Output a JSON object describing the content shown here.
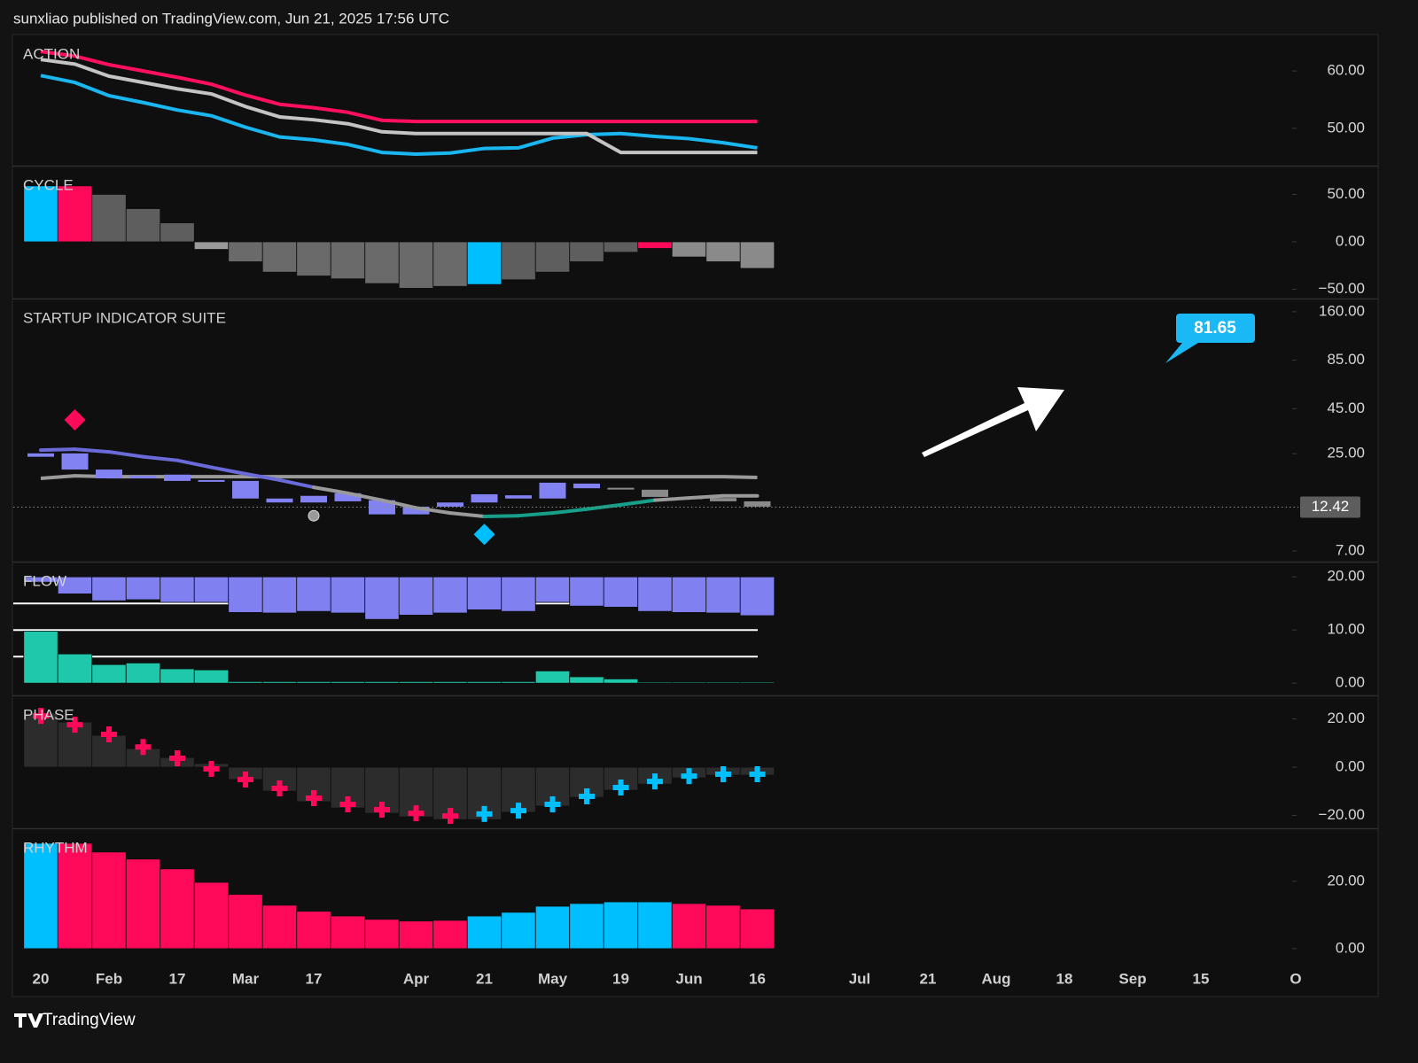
{
  "header": {
    "text": "sunxliao published on TradingView.com, Jun 21, 2025 17:56 UTC"
  },
  "footer": {
    "brand": "TradingView"
  },
  "chart_data": [
    {
      "type": "line",
      "title": "ACTION",
      "ylim": [
        43.5,
        66.2
      ],
      "yticks": [
        {
          "value": 50,
          "label": "50.00"
        },
        {
          "value": 60,
          "label": "60.00"
        }
      ],
      "series": [
        {
          "type": "line",
          "color": "#ff0f5f",
          "values": [
            63.4,
            62.6,
            61.1,
            60.0,
            58.9,
            57.7,
            55.8,
            54.2,
            53.6,
            52.8,
            51.4,
            51.2,
            51.2,
            51.2,
            51.2,
            51.2,
            51.2,
            51.2,
            51.2,
            51.2,
            51.2,
            51.2,
            null,
            null,
            null,
            null,
            null,
            null,
            null,
            null,
            null,
            null,
            null,
            null,
            null,
            null,
            null,
            null
          ]
        },
        {
          "type": "line",
          "color": "#1ab6f0",
          "values": [
            59.2,
            58.0,
            55.7,
            54.5,
            53.2,
            52.2,
            50.2,
            48.5,
            48.0,
            47.2,
            45.8,
            45.5,
            45.7,
            46.5,
            46.6,
            48.3,
            48.9,
            49.1,
            48.6,
            48.2,
            47.5,
            46.6,
            null,
            null,
            null,
            null,
            null,
            null,
            null,
            null,
            null,
            null,
            null,
            null,
            null,
            null,
            null,
            null
          ]
        },
        {
          "type": "line",
          "color": "#c4c4c4",
          "values": [
            62.0,
            61.2,
            59.1,
            58.0,
            56.9,
            56.0,
            53.8,
            52.0,
            51.5,
            50.8,
            49.4,
            49.1,
            49.1,
            49.1,
            49.1,
            49.1,
            49.1,
            45.8,
            45.8,
            45.8,
            45.8,
            45.8,
            null,
            null,
            null,
            null,
            null,
            null,
            null,
            null,
            null,
            null,
            null,
            null,
            null,
            null,
            null,
            null
          ]
        }
      ]
    },
    {
      "type": "bar",
      "title": "CYCLE",
      "ylim": [
        -59.8,
        79.4
      ],
      "yticks": [
        {
          "value": -50,
          "label": "−50.00"
        },
        {
          "value": 0,
          "label": "0.00"
        },
        {
          "value": 50,
          "label": "50.00"
        }
      ],
      "series": [
        {
          "type": "bar",
          "values": [
            59,
            59,
            50,
            35,
            20,
            -8,
            -21,
            -32,
            -36,
            -39,
            -44,
            -49,
            -47,
            -45,
            -40,
            -32,
            -21,
            -11,
            -7,
            -16,
            -21,
            -28,
            null,
            null,
            null,
            null,
            null,
            null,
            null,
            null,
            null,
            null,
            null,
            null,
            null,
            null,
            null,
            null
          ],
          "colors": [
            "#00bfff",
            "#ff0a5a",
            "#5e5e5e",
            "#5e5e5e",
            "#5e5e5e",
            "#9a9a9a",
            "#6a6a6a",
            "#6a6a6a",
            "#6a6a6a",
            "#6a6a6a",
            "#6a6a6a",
            "#6a6a6a",
            "#6a6a6a",
            "#00bfff",
            "#5e5e5e",
            "#5e5e5e",
            "#5e5e5e",
            "#5e5e5e",
            "#ff0a5a",
            "#8a8a8a",
            "#8a8a8a",
            "#8a8a8a",
            null,
            null,
            null,
            null,
            null,
            null,
            null,
            null,
            null,
            null,
            null,
            null,
            null,
            null,
            null,
            null
          ]
        }
      ]
    },
    {
      "type": "candlestick",
      "title": "STARTUP INDICATOR SUITE",
      "log": true,
      "ylim": [
        6.09,
        188
      ],
      "yticks": [
        {
          "value": 7,
          "label": "7.00"
        },
        {
          "value": 25,
          "label": "25.00"
        },
        {
          "value": 45,
          "label": "45.00"
        },
        {
          "value": 85,
          "label": "85.00"
        },
        {
          "value": 160,
          "label": "160.00"
        }
      ],
      "last_price": 12.42,
      "callout": 81.65,
      "series": [
        {
          "type": "line",
          "color": "#9a9a9a",
          "values": [
            18.1,
            18.7,
            18.5,
            18.5,
            18.5,
            18.5,
            18.5,
            18.5,
            18.5,
            18.5,
            18.5,
            18.5,
            18.5,
            18.5,
            18.5,
            18.5,
            18.5,
            18.5,
            18.5,
            18.5,
            18.5,
            18.3,
            null,
            null,
            null,
            null,
            null,
            null,
            null,
            null,
            null,
            null,
            null,
            null,
            null,
            null,
            null,
            null
          ]
        },
        {
          "type": "candlestick",
          "open": [
            25.1,
            25.1,
            20.3,
            18.7,
            19.0,
            17.7,
            17.5,
            13.9,
            14.4,
            14.9,
            13.6,
            12.5,
            13.2,
            14.7,
            14.5,
            17.1,
            16.9,
            16.0,
            15.6,
            14.1,
            14.0,
            13.4,
            null,
            null,
            null,
            null,
            null,
            null,
            null,
            null,
            null,
            null,
            null,
            null,
            null,
            null,
            null,
            null
          ],
          "close": [
            24.0,
            20.3,
            18.1,
            18.1,
            17.5,
            17.6,
            13.9,
            13.2,
            13.2,
            13.4,
            11.3,
            11.3,
            12.5,
            13.2,
            13.9,
            13.9,
            15.9,
            15.9,
            14.2,
            14.0,
            13.4,
            12.5,
            null,
            null,
            null,
            null,
            null,
            null,
            null,
            null,
            null,
            null,
            null,
            null,
            null,
            null,
            null,
            null
          ],
          "colors": [
            "#8282f2",
            "#8282f2",
            "#8282f2",
            "#8282f2",
            "#8282f2",
            "#8282f2",
            "#8282f2",
            "#8282f2",
            "#8282f2",
            "#8282f2",
            "#8282f2",
            "#8282f2",
            "#8282f2",
            "#8282f2",
            "#8282f2",
            "#8282f2",
            "#8282f2",
            "#8a8a8a",
            "#8a8a8a",
            "#8a8a8a",
            "#8a8a8a",
            "#8a8a8a",
            null,
            null,
            null,
            null,
            null,
            null,
            null,
            null,
            null,
            null,
            null,
            null,
            null,
            null,
            null,
            null
          ]
        },
        {
          "type": "line",
          "values": [
            26.2,
            26.5,
            25.6,
            24.0,
            22.9,
            20.9,
            19.2,
            17.7,
            16.1,
            14.9,
            13.6,
            12.3,
            11.5,
            11.0,
            11.1,
            11.5,
            12.1,
            12.8,
            13.6,
            14.0,
            14.4,
            14.4,
            null,
            null,
            null,
            null,
            null,
            null,
            null,
            null,
            null,
            null,
            null,
            null,
            null,
            null,
            null,
            null
          ],
          "colors": [
            "#6a6ad8",
            "#6a6ad8",
            "#6a6ad8",
            "#6a6ad8",
            "#6a6ad8",
            "#6a6ad8",
            "#6a6ad8",
            "#6a6ad8",
            "#9a9a9a",
            "#9a9a9a",
            "#9a9a9a",
            "#9a9a9a",
            "#9a9a9a",
            "#16a08a",
            "#16a08a",
            "#16a08a",
            "#16a08a",
            "#16a08a",
            "#9a9a9a",
            "#9a9a9a",
            "#9a9a9a",
            "#9a9a9a",
            null,
            null,
            null,
            null,
            null,
            null,
            null,
            null,
            null,
            null,
            null,
            null,
            null,
            null,
            null,
            null
          ]
        },
        {
          "type": "marker",
          "shape": "diamond",
          "values": [
            null,
            38.9,
            null,
            null,
            null,
            null,
            null,
            null,
            null,
            null,
            null,
            null,
            null,
            8.7,
            null,
            null,
            null,
            null,
            null,
            null,
            null,
            null,
            null,
            null,
            null,
            null,
            null,
            null,
            null,
            null,
            null,
            null,
            null,
            null,
            null,
            null,
            null,
            null
          ],
          "colors": [
            null,
            "#ff0a5a",
            null,
            null,
            null,
            null,
            null,
            null,
            null,
            null,
            null,
            null,
            null,
            "#00bfff",
            null,
            null,
            null,
            null,
            null,
            null,
            null,
            null,
            null,
            null,
            null,
            null,
            null,
            null,
            null,
            null,
            null,
            null,
            null,
            null,
            null,
            null,
            null,
            null
          ]
        },
        {
          "type": "marker",
          "shape": "dot",
          "color": "#9a9a9a",
          "values": [
            null,
            null,
            null,
            null,
            null,
            null,
            null,
            null,
            11.1,
            null,
            null,
            null,
            null,
            null,
            null,
            null,
            null,
            null,
            null,
            null,
            null,
            null,
            null,
            null,
            null,
            null,
            null,
            null,
            null,
            null,
            null,
            null,
            null,
            null,
            null,
            null,
            null,
            null
          ]
        }
      ]
    },
    {
      "type": "bar",
      "title": "FLOW",
      "ylim": [
        -2.3,
        22.7
      ],
      "yticks": [
        {
          "value": 0,
          "label": "0.00"
        },
        {
          "value": 10,
          "label": "10.00"
        },
        {
          "value": 20,
          "label": "20.00"
        }
      ],
      "levels": [
        15,
        10,
        5
      ],
      "series": [
        {
          "type": "bar",
          "base": 20,
          "color": "#8080f0",
          "values": [
            19.0,
            16.8,
            15.5,
            15.7,
            15.2,
            15.2,
            13.3,
            13.2,
            13.5,
            13.2,
            12.0,
            12.8,
            13.2,
            13.8,
            13.5,
            15.2,
            14.5,
            14.3,
            13.5,
            13.3,
            13.2,
            12.7,
            null,
            null,
            null,
            null,
            null,
            null,
            null,
            null,
            null,
            null,
            null,
            null,
            null,
            null,
            null,
            null
          ]
        },
        {
          "type": "bar",
          "color": "#1fc8aa",
          "values": [
            9.8,
            5.5,
            3.5,
            3.8,
            2.7,
            2.5,
            0.3,
            0.3,
            0.3,
            0.3,
            0.3,
            0.3,
            0.3,
            0.3,
            0.3,
            2.3,
            1.2,
            0.8,
            0.2,
            0.2,
            0.2,
            0.2,
            null,
            null,
            null,
            null,
            null,
            null,
            null,
            null,
            null,
            null,
            null,
            null,
            null,
            null,
            null,
            null
          ]
        }
      ]
    },
    {
      "type": "bar",
      "title": "PHASE",
      "ylim": [
        -25.3,
        29.4
      ],
      "yticks": [
        {
          "value": -20,
          "label": "−20.00"
        },
        {
          "value": 0,
          "label": "0.00"
        },
        {
          "value": 20,
          "label": "20.00"
        }
      ],
      "series": [
        {
          "type": "bar",
          "color": "#2c2c2c",
          "values": [
            22.4,
            18.7,
            13.2,
            7.7,
            4.0,
            1.5,
            -5.1,
            -9.9,
            -14.3,
            -16.9,
            -19.1,
            -20.6,
            -21.7,
            -21.7,
            -18.7,
            -16.1,
            -12.5,
            -9.5,
            -7.0,
            -4.4,
            -3.3,
            -3.3,
            null,
            null,
            null,
            null,
            null,
            null,
            null,
            null,
            null,
            null,
            null,
            null,
            null,
            null,
            null,
            null
          ]
        },
        {
          "type": "marker",
          "shape": "cross",
          "values": [
            21.3,
            17.6,
            13.6,
            8.4,
            3.7,
            -0.7,
            -5.1,
            -8.8,
            -12.8,
            -15.4,
            -17.6,
            -19.1,
            -20.2,
            -19.4,
            -18.0,
            -15.4,
            -12.1,
            -8.4,
            -5.9,
            -3.7,
            -2.9,
            -2.9,
            null,
            null,
            null,
            null,
            null,
            null,
            null,
            null,
            null,
            null,
            null,
            null,
            null,
            null,
            null,
            null
          ],
          "colors": [
            "#ff0a5a",
            "#ff0a5a",
            "#ff0a5a",
            "#ff0a5a",
            "#ff0a5a",
            "#ff0a5a",
            "#ff0a5a",
            "#ff0a5a",
            "#ff0a5a",
            "#ff0a5a",
            "#ff0a5a",
            "#ff0a5a",
            "#ff0a5a",
            "#00bfff",
            "#00bfff",
            "#00bfff",
            "#00bfff",
            "#00bfff",
            "#00bfff",
            "#00bfff",
            "#00bfff",
            "#00bfff",
            null,
            null,
            null,
            null,
            null,
            null,
            null,
            null,
            null,
            null,
            null,
            null,
            null,
            null,
            null,
            null
          ]
        }
      ]
    },
    {
      "type": "bar",
      "title": "RHYTHM",
      "ylim": [
        -4.5,
        35.5
      ],
      "yticks": [
        {
          "value": 0,
          "label": "0.00"
        },
        {
          "value": 20,
          "label": "20.00"
        }
      ],
      "categories": [
        "20",
        null,
        "Feb",
        null,
        "17",
        null,
        "Mar",
        null,
        "17",
        null,
        null,
        "Apr",
        null,
        "21",
        null,
        "May",
        null,
        "19",
        null,
        "Jun",
        null,
        "16",
        null,
        null,
        "Jul",
        null,
        "21",
        null,
        "Aug",
        null,
        "18",
        null,
        "Sep",
        null,
        "15",
        null,
        null,
        "O"
      ],
      "series": [
        {
          "type": "bar",
          "values": [
            31.3,
            31.3,
            28.7,
            26.6,
            23.7,
            19.7,
            16.1,
            12.9,
            11.1,
            9.7,
            8.7,
            8.2,
            8.4,
            9.7,
            10.8,
            12.6,
            13.4,
            13.9,
            13.9,
            13.4,
            12.9,
            11.8,
            null,
            null,
            null,
            null,
            null,
            null,
            null,
            null,
            null,
            null,
            null,
            null,
            null,
            null,
            null,
            null
          ],
          "colors": [
            "#00bfff",
            "#ff0a5a",
            "#ff0a5a",
            "#ff0a5a",
            "#ff0a5a",
            "#ff0a5a",
            "#ff0a5a",
            "#ff0a5a",
            "#ff0a5a",
            "#ff0a5a",
            "#ff0a5a",
            "#ff0a5a",
            "#ff0a5a",
            "#00bfff",
            "#00bfff",
            "#00bfff",
            "#00bfff",
            "#00bfff",
            "#00bfff",
            "#ff0a5a",
            "#ff0a5a",
            "#ff0a5a",
            null,
            null,
            null,
            null,
            null,
            null,
            null,
            null,
            null,
            null,
            null,
            null,
            null,
            null,
            null,
            null
          ]
        }
      ]
    }
  ]
}
